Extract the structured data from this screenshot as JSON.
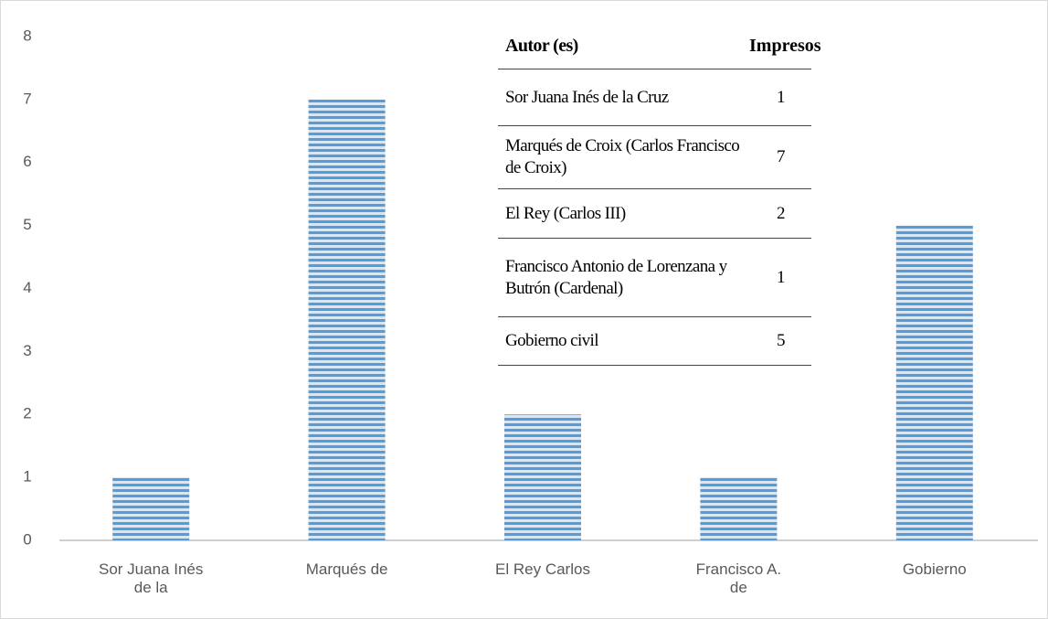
{
  "chart_data": {
    "type": "bar",
    "categories": [
      "Sor Juana Inés\nde la",
      "Marqués de",
      "El Rey Carlos",
      "Francisco A.\nde",
      "Gobierno"
    ],
    "values": [
      1,
      7,
      2,
      1,
      5
    ],
    "color": "#5b9bd5",
    "ylim": [
      0,
      8
    ],
    "yticks": [
      0,
      1,
      2,
      3,
      4,
      5,
      6,
      7,
      8
    ],
    "grid": false
  },
  "table": {
    "header": [
      "Autor (es)",
      "Impresos"
    ],
    "rows": [
      [
        "Sor Juana Inés de la Cruz",
        1
      ],
      [
        "Marqués de Croix (Carlos Francisco de Croix)",
        7
      ],
      [
        "El Rey (Carlos III)",
        2
      ],
      [
        "Francisco Antonio de Lorenzana y Butrón (Cardenal)",
        1
      ],
      [
        "Gobierno civil",
        5
      ]
    ]
  }
}
